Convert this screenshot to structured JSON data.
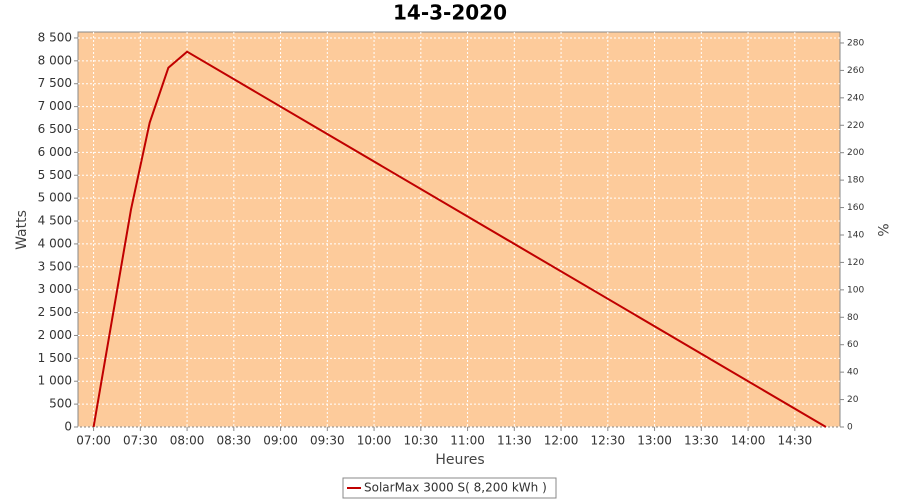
{
  "chart_data": {
    "type": "line",
    "title": "14-3-2020",
    "x_label": "Heures",
    "y_label": "Watts",
    "y2_label": "%",
    "x": [
      "07:00",
      "07:24",
      "07:36",
      "07:48",
      "08:00",
      "14:50"
    ],
    "series": [
      {
        "name": "SolarMax 3000 S( 8,200 kWh )",
        "color": "#c00000",
        "values": [
          0,
          4750,
          6650,
          7850,
          8200,
          0
        ]
      }
    ],
    "xlim": [
      "06:50",
      "14:59"
    ],
    "xticks": [
      "07:00",
      "07:30",
      "08:00",
      "08:30",
      "09:00",
      "09:30",
      "10:00",
      "10:30",
      "11:00",
      "11:30",
      "12:00",
      "12:30",
      "13:00",
      "13:30",
      "14:00",
      "14:30"
    ],
    "ylim": [
      0,
      8630
    ],
    "yticks": [
      0,
      {
        "value": 500,
        "label": "500"
      },
      {
        "value": 1000,
        "label": "1 000"
      },
      {
        "value": 1500,
        "label": "1 500"
      },
      {
        "value": 2000,
        "label": "2 000"
      },
      {
        "value": 2500,
        "label": "2 500"
      },
      {
        "value": 3000,
        "label": "3 000"
      },
      {
        "value": 3500,
        "label": "3 500"
      },
      {
        "value": 4000,
        "label": "4 000"
      },
      {
        "value": 4500,
        "label": "4 500"
      },
      {
        "value": 5000,
        "label": "5 000"
      },
      {
        "value": 5500,
        "label": "5 500"
      },
      {
        "value": 6000,
        "label": "6 000"
      },
      {
        "value": 6500,
        "label": "6 500"
      },
      {
        "value": 7000,
        "label": "7 000"
      },
      {
        "value": 7500,
        "label": "7 500"
      },
      {
        "value": 8000,
        "label": "8 000"
      },
      {
        "value": 8500,
        "label": "8 500"
      }
    ],
    "y2lim": [
      0,
      288
    ],
    "y2ticks": [
      0,
      20,
      40,
      60,
      80,
      100,
      120,
      140,
      160,
      180,
      200,
      220,
      240,
      260,
      280
    ],
    "grid": true,
    "background": "#fdcb9b",
    "legend": "bottom"
  }
}
